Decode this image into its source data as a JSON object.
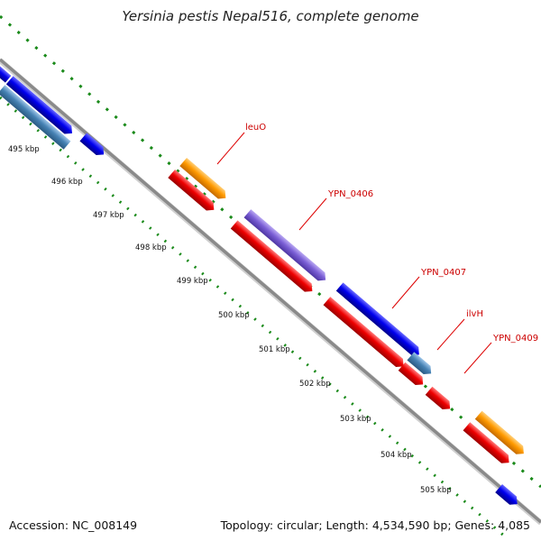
{
  "title": "Yersinia pestis Nepal516, complete genome",
  "footer": {
    "accession_label": "Accession:",
    "accession": "NC_008149",
    "topology_label": "Topology:",
    "topology": "circular",
    "length_label": "Length:",
    "length": "4,534,590 bp",
    "genes_label": "Genes:",
    "genes": "4,085"
  },
  "colors": {
    "backbone": "#8a8a8a",
    "gc_dots": "#1a8a1a",
    "label_lines": "#dd0000",
    "forward_cds": "#0000ee",
    "forward_cds_alt": "#4682b4",
    "orange_gene": "#ff9a00",
    "purple_gene": "#7b5fd6",
    "reverse_cds": "#ee0000"
  },
  "ticks": [
    "495 kbp",
    "496 kbp",
    "497 kbp",
    "498 kbp",
    "499 kbp",
    "500 kbp",
    "501 kbp",
    "502 kbp",
    "503 kbp",
    "504 kbp",
    "505 kbp"
  ],
  "gene_labels": [
    "leuO",
    "YPN_0406",
    "YPN_0407",
    "ilvH",
    "YPN_0409"
  ]
}
